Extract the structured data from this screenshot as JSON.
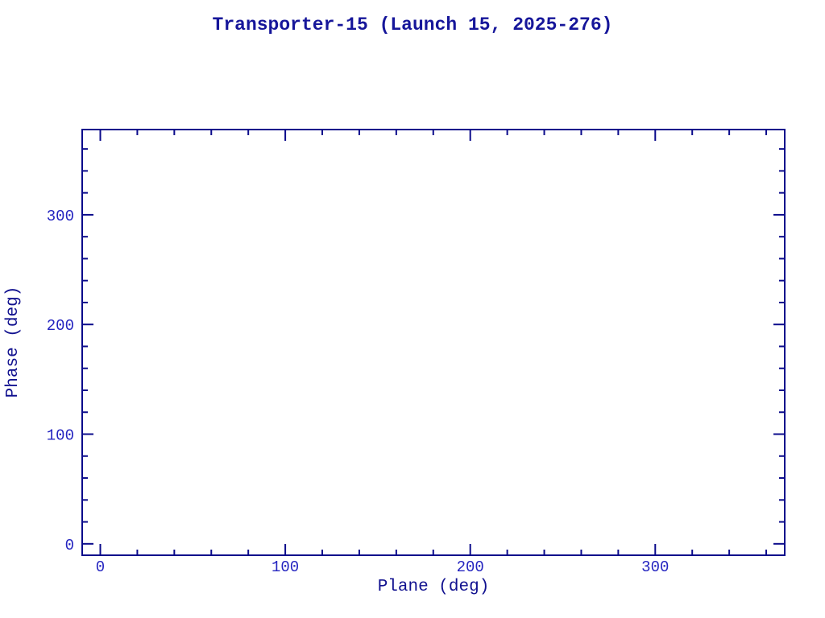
{
  "title": {
    "text": "Transporter-15 (Launch 15, 2025-276)"
  },
  "chart_data": {
    "type": "scatter",
    "title": "Transporter-15 (Launch 15, 2025-276)",
    "xlabel": "Plane (deg)",
    "ylabel": "Phase (deg)",
    "xlim": [
      -9.8,
      370.0
    ],
    "ylim": [
      -10.4,
      377.7
    ],
    "x_major_ticks": [
      0,
      100,
      200,
      300
    ],
    "y_major_ticks": [
      0,
      100,
      200,
      300
    ],
    "x_tick_labels": [
      "0",
      "100",
      "200",
      "300"
    ],
    "y_tick_labels": [
      "0",
      "100",
      "200",
      "300"
    ],
    "minor_tick_step": 20,
    "series": [],
    "grid": false,
    "legend": "none",
    "frame_style": "closed box, inward ticks mirrored on all four sides, no data plotted",
    "colors": {
      "axis": "#0b0b8b",
      "tick_label": "#2424c0",
      "axis_label": "#11118f",
      "title": "#16169a",
      "background": "#ffffff"
    }
  }
}
